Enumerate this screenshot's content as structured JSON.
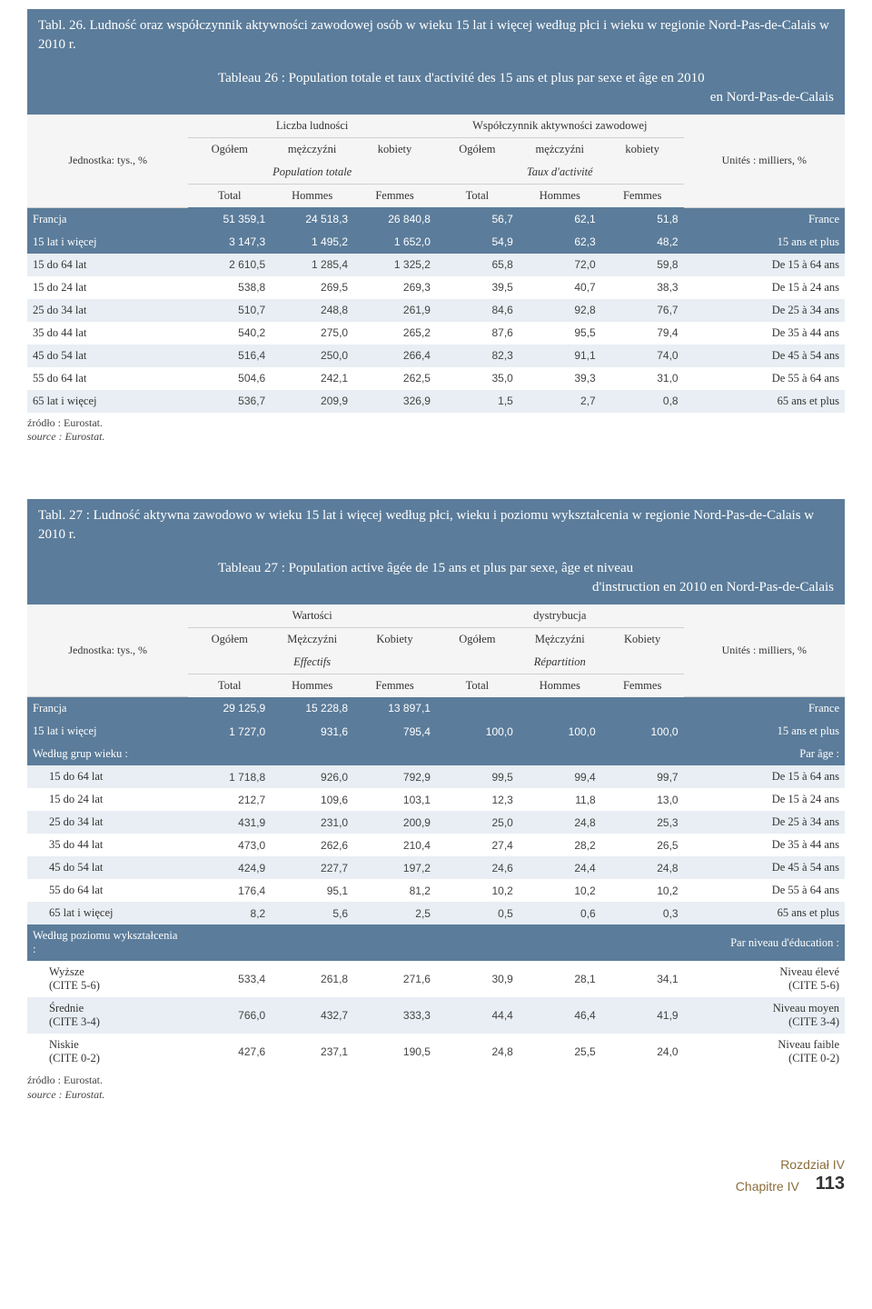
{
  "table26": {
    "title_pl": "Tabl. 26. Ludność oraz współczynnik aktywności zawodowej osób w wieku 15 lat i więcej według płci i wieku w regionie Nord-Pas-de-Calais w 2010 r.",
    "title_fr_line1": "Tableau 26 : Population totale et taux d'activité des 15 ans et plus par sexe et âge en 2010",
    "title_fr_line2": "en Nord-Pas-de-Calais",
    "unit_label": "Jednostka: tys., %",
    "units_right": "Unités : milliers, %",
    "group_left": "Liczba ludności",
    "group_right": "Współczynnik aktywności zawodowej",
    "sub_ogolem": "Ogółem",
    "sub_m": "mężczyźni",
    "sub_k": "kobiety",
    "sub_left_it": "Population totale",
    "sub_right_it": "Taux d'activité",
    "h_total": "Total",
    "h_hommes": "Hommes",
    "h_femmes": "Femmes",
    "rows": [
      {
        "dark": true,
        "pl": "Francja",
        "v": [
          "51 359,1",
          "24 518,3",
          "26 840,8",
          "56,7",
          "62,1",
          "51,8"
        ],
        "fr": "France"
      },
      {
        "dark": true,
        "pl": "15 lat i więcej",
        "v": [
          "3 147,3",
          "1 495,2",
          "1 652,0",
          "54,9",
          "62,3",
          "48,2"
        ],
        "fr": "15 ans et plus"
      },
      {
        "shade": true,
        "pl": "15 do 64 lat",
        "v": [
          "2 610,5",
          "1 285,4",
          "1 325,2",
          "65,8",
          "72,0",
          "59,8"
        ],
        "fr": "De 15 à 64 ans"
      },
      {
        "pl": "15 do 24 lat",
        "v": [
          "538,8",
          "269,5",
          "269,3",
          "39,5",
          "40,7",
          "38,3"
        ],
        "fr": "De 15 à 24 ans"
      },
      {
        "shade": true,
        "pl": "25 do 34 lat",
        "v": [
          "510,7",
          "248,8",
          "261,9",
          "84,6",
          "92,8",
          "76,7"
        ],
        "fr": "De 25 à 34 ans"
      },
      {
        "pl": "35 do 44 lat",
        "v": [
          "540,2",
          "275,0",
          "265,2",
          "87,6",
          "95,5",
          "79,4"
        ],
        "fr": "De 35 à 44 ans"
      },
      {
        "shade": true,
        "pl": "45 do 54 lat",
        "v": [
          "516,4",
          "250,0",
          "266,4",
          "82,3",
          "91,1",
          "74,0"
        ],
        "fr": "De 45 à 54 ans"
      },
      {
        "pl": "55 do 64 lat",
        "v": [
          "504,6",
          "242,1",
          "262,5",
          "35,0",
          "39,3",
          "31,0"
        ],
        "fr": "De 55 à 64 ans"
      },
      {
        "shade": true,
        "pl": "65 lat i więcej",
        "v": [
          "536,7",
          "209,9",
          "326,9",
          "1,5",
          "2,7",
          "0,8"
        ],
        "fr": "65 ans et plus"
      }
    ],
    "foot_pl": "źródło : Eurostat.",
    "foot_fr": "source : Eurostat."
  },
  "table27": {
    "title_pl": "Tabl. 27 : Ludność aktywna zawodowo w wieku 15 lat i więcej według płci, wieku i poziomu wykształcenia w regionie Nord-Pas-de-Calais w 2010 r.",
    "title_fr_line1": "Tableau 27 : Population active âgée de 15 ans et plus par sexe, âge et niveau",
    "title_fr_line2": "d'instruction en 2010 en Nord-Pas-de-Calais",
    "unit_label": "Jednostka: tys., %",
    "units_right": "Unités : milliers, %",
    "group_left": "Wartości",
    "group_right": "dystrybucja",
    "sub_ogolem": "Ogółem",
    "sub_m": "Mężczyźni",
    "sub_k": "Kobiety",
    "sub_left_it": "Effectifs",
    "sub_right_it": "Répartition",
    "h_total": "Total",
    "h_hommes": "Hommes",
    "h_femmes": "Femmes",
    "rows": [
      {
        "dark": true,
        "pl": "Francja",
        "v": [
          "29 125,9",
          "15 228,8",
          "13 897,1",
          "",
          "",
          ""
        ],
        "fr": "France"
      },
      {
        "dark": true,
        "pl": "15 lat i więcej",
        "v": [
          "1 727,0",
          "931,6",
          "795,4",
          "100,0",
          "100,0",
          "100,0"
        ],
        "fr": "15 ans et plus"
      },
      {
        "dark": true,
        "pl": "Według grup wieku :",
        "v": [
          "",
          "",
          "",
          "",
          "",
          ""
        ],
        "fr": "Par âge :"
      },
      {
        "shade": true,
        "indent": true,
        "pl": "15 do 64 lat",
        "v": [
          "1 718,8",
          "926,0",
          "792,9",
          "99,5",
          "99,4",
          "99,7"
        ],
        "fr": "De 15 à 64 ans"
      },
      {
        "indent": true,
        "pl": "15 do 24 lat",
        "v": [
          "212,7",
          "109,6",
          "103,1",
          "12,3",
          "11,8",
          "13,0"
        ],
        "fr": "De 15 à 24 ans"
      },
      {
        "shade": true,
        "indent": true,
        "pl": "25 do 34 lat",
        "v": [
          "431,9",
          "231,0",
          "200,9",
          "25,0",
          "24,8",
          "25,3"
        ],
        "fr": "De 25 à 34 ans"
      },
      {
        "indent": true,
        "pl": "35 do 44 lat",
        "v": [
          "473,0",
          "262,6",
          "210,4",
          "27,4",
          "28,2",
          "26,5"
        ],
        "fr": "De 35 à 44 ans"
      },
      {
        "shade": true,
        "indent": true,
        "pl": "45 do 54 lat",
        "v": [
          "424,9",
          "227,7",
          "197,2",
          "24,6",
          "24,4",
          "24,8"
        ],
        "fr": "De 45 à 54 ans"
      },
      {
        "indent": true,
        "pl": "55 do 64 lat",
        "v": [
          "176,4",
          "95,1",
          "81,2",
          "10,2",
          "10,2",
          "10,2"
        ],
        "fr": "De 55 à 64 ans"
      },
      {
        "shade": true,
        "indent": true,
        "pl": "65 lat i więcej",
        "v": [
          "8,2",
          "5,6",
          "2,5",
          "0,5",
          "0,6",
          "0,3"
        ],
        "fr": "65 ans et plus"
      },
      {
        "dark": true,
        "pl": "Według poziomu wykształcenia :",
        "v": [
          "",
          "",
          "",
          "",
          "",
          ""
        ],
        "fr": "Par niveau d'éducation :"
      },
      {
        "indent": true,
        "pl": "Wyższe\n(CITE 5-6)",
        "v": [
          "533,4",
          "261,8",
          "271,6",
          "30,9",
          "28,1",
          "34,1"
        ],
        "fr": "Niveau élevé\n(CITE 5-6)"
      },
      {
        "shade": true,
        "indent": true,
        "pl": "Średnie\n(CITE 3-4)",
        "v": [
          "766,0",
          "432,7",
          "333,3",
          "44,4",
          "46,4",
          "41,9"
        ],
        "fr": "Niveau moyen\n(CITE 3-4)"
      },
      {
        "indent": true,
        "pl": "Niskie\n(CITE 0-2)",
        "v": [
          "427,6",
          "237,1",
          "190,5",
          "24,8",
          "25,5",
          "24,0"
        ],
        "fr": "Niveau faible\n(CITE 0-2)"
      }
    ],
    "foot_pl": "źródło : Eurostat.",
    "foot_fr": "source : Eurostat."
  },
  "footer": {
    "line1": "Rozdział IV",
    "line2": "Chapitre IV",
    "page": "113"
  }
}
